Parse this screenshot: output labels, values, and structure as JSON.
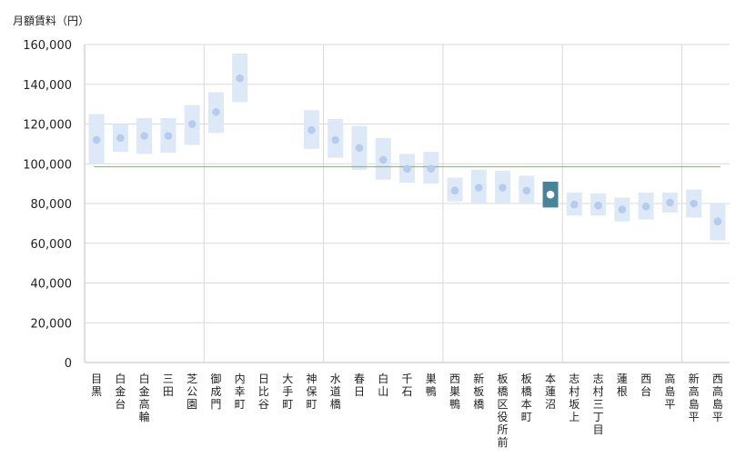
{
  "chart_data": {
    "type": "range-dot",
    "unit_label": "月額賃料（円）",
    "ylim": [
      0,
      160000
    ],
    "yticks": [
      0,
      20000,
      40000,
      60000,
      80000,
      100000,
      120000,
      140000,
      160000
    ],
    "ytick_labels": [
      "0",
      "20,000",
      "40,000",
      "60,000",
      "80,000",
      "100,000",
      "120,000",
      "140,000",
      "160,000"
    ],
    "reference_line": {
      "value": 98500,
      "color": "#92c15a"
    },
    "group_dividers_after": [
      4,
      9,
      14,
      19,
      24
    ],
    "highlight": "本蓮沼",
    "colors": {
      "band": "#dde9f6",
      "dot": "#b7cced",
      "highlight_band": "#4a8298",
      "highlight_dot": "#ffffff",
      "grid": "#d9d9d9",
      "axis": "#bfbfbf"
    },
    "categories": [
      {
        "name": "目黒",
        "low": 100000,
        "high": 125000,
        "value": 112000
      },
      {
        "name": "白金台",
        "low": 106000,
        "high": 120000,
        "value": 113000
      },
      {
        "name": "白金高輪",
        "low": 105000,
        "high": 123000,
        "value": 114000
      },
      {
        "name": "三田",
        "low": 105500,
        "high": 123000,
        "value": 114000
      },
      {
        "name": "芝公園",
        "low": 109500,
        "high": 129500,
        "value": 120000
      },
      {
        "name": "御成門",
        "low": 115500,
        "high": 136000,
        "value": 126000
      },
      {
        "name": "内幸町",
        "low": 131000,
        "high": 155500,
        "value": 143000
      },
      {
        "name": "日比谷",
        "low": null,
        "high": null,
        "value": null
      },
      {
        "name": "大手町",
        "low": null,
        "high": null,
        "value": null
      },
      {
        "name": "神保町",
        "low": 107500,
        "high": 127000,
        "value": 117000
      },
      {
        "name": "水道橋",
        "low": 103000,
        "high": 122500,
        "value": 112000
      },
      {
        "name": "春日",
        "low": 97000,
        "high": 119000,
        "value": 108000
      },
      {
        "name": "白山",
        "low": 92000,
        "high": 113000,
        "value": 102000
      },
      {
        "name": "千石",
        "low": 90500,
        "high": 105000,
        "value": 97500
      },
      {
        "name": "巣鴨",
        "low": 90000,
        "high": 106000,
        "value": 97500
      },
      {
        "name": "西巣鴨",
        "low": 81000,
        "high": 93000,
        "value": 86500
      },
      {
        "name": "新板橋",
        "low": 80000,
        "high": 97000,
        "value": 88000
      },
      {
        "name": "板橋区役所前",
        "low": 80000,
        "high": 96500,
        "value": 88000
      },
      {
        "name": "板橋本町",
        "low": 80000,
        "high": 94000,
        "value": 86500
      },
      {
        "name": "本蓮沼",
        "low": 78000,
        "high": 91000,
        "value": 84500
      },
      {
        "name": "志村坂上",
        "low": 74000,
        "high": 85500,
        "value": 79500
      },
      {
        "name": "志村三丁目",
        "low": 74000,
        "high": 85000,
        "value": 79000
      },
      {
        "name": "蓮根",
        "low": 71000,
        "high": 83000,
        "value": 77000
      },
      {
        "name": "西台",
        "low": 72000,
        "high": 85500,
        "value": 78500
      },
      {
        "name": "高島平",
        "low": 75500,
        "high": 85500,
        "value": 80500
      },
      {
        "name": "新高島平",
        "low": 73000,
        "high": 87000,
        "value": 80000
      },
      {
        "name": "西高島平",
        "low": 61500,
        "high": 80000,
        "value": 71000
      }
    ]
  }
}
